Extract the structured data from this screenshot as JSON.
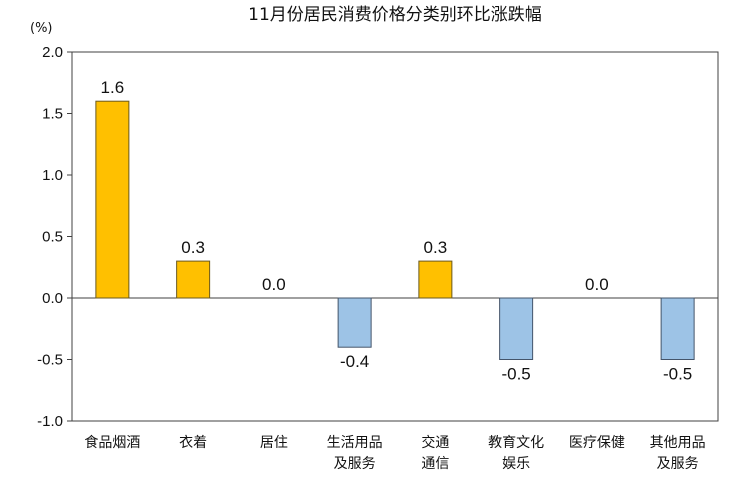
{
  "chart_data": {
    "type": "bar",
    "title": "11月份居民消费价格分类别环比涨跌幅",
    "unit": "(%)",
    "ylim": [
      -1.0,
      2.0
    ],
    "yticks": [
      "2.0",
      "1.5",
      "1.0",
      "0.5",
      "0.0",
      "-0.5",
      "-1.0"
    ],
    "ytick_values": [
      2.0,
      1.5,
      1.0,
      0.5,
      0.0,
      -0.5,
      -1.0
    ],
    "categories": [
      [
        "食品烟酒"
      ],
      [
        "衣着"
      ],
      [
        "居住"
      ],
      [
        "生活用品",
        "及服务"
      ],
      [
        "交通",
        "通信"
      ],
      [
        "教育文化",
        "娱乐"
      ],
      [
        "医疗保健"
      ],
      [
        "其他用品",
        "及服务"
      ]
    ],
    "values": [
      1.6,
      0.3,
      0.0,
      -0.4,
      0.3,
      -0.5,
      0.0,
      -0.5
    ],
    "value_labels": [
      "1.6",
      "0.3",
      "0.0",
      "-0.4",
      "0.3",
      "-0.5",
      "0.0",
      "-0.5"
    ],
    "colors": {
      "positive_fill": "#FFC000",
      "positive_stroke": "#6B5A1E",
      "negative_fill": "#9DC3E6",
      "negative_stroke": "#44546A",
      "axis": "#404040"
    },
    "grid": false,
    "legend": "none"
  }
}
